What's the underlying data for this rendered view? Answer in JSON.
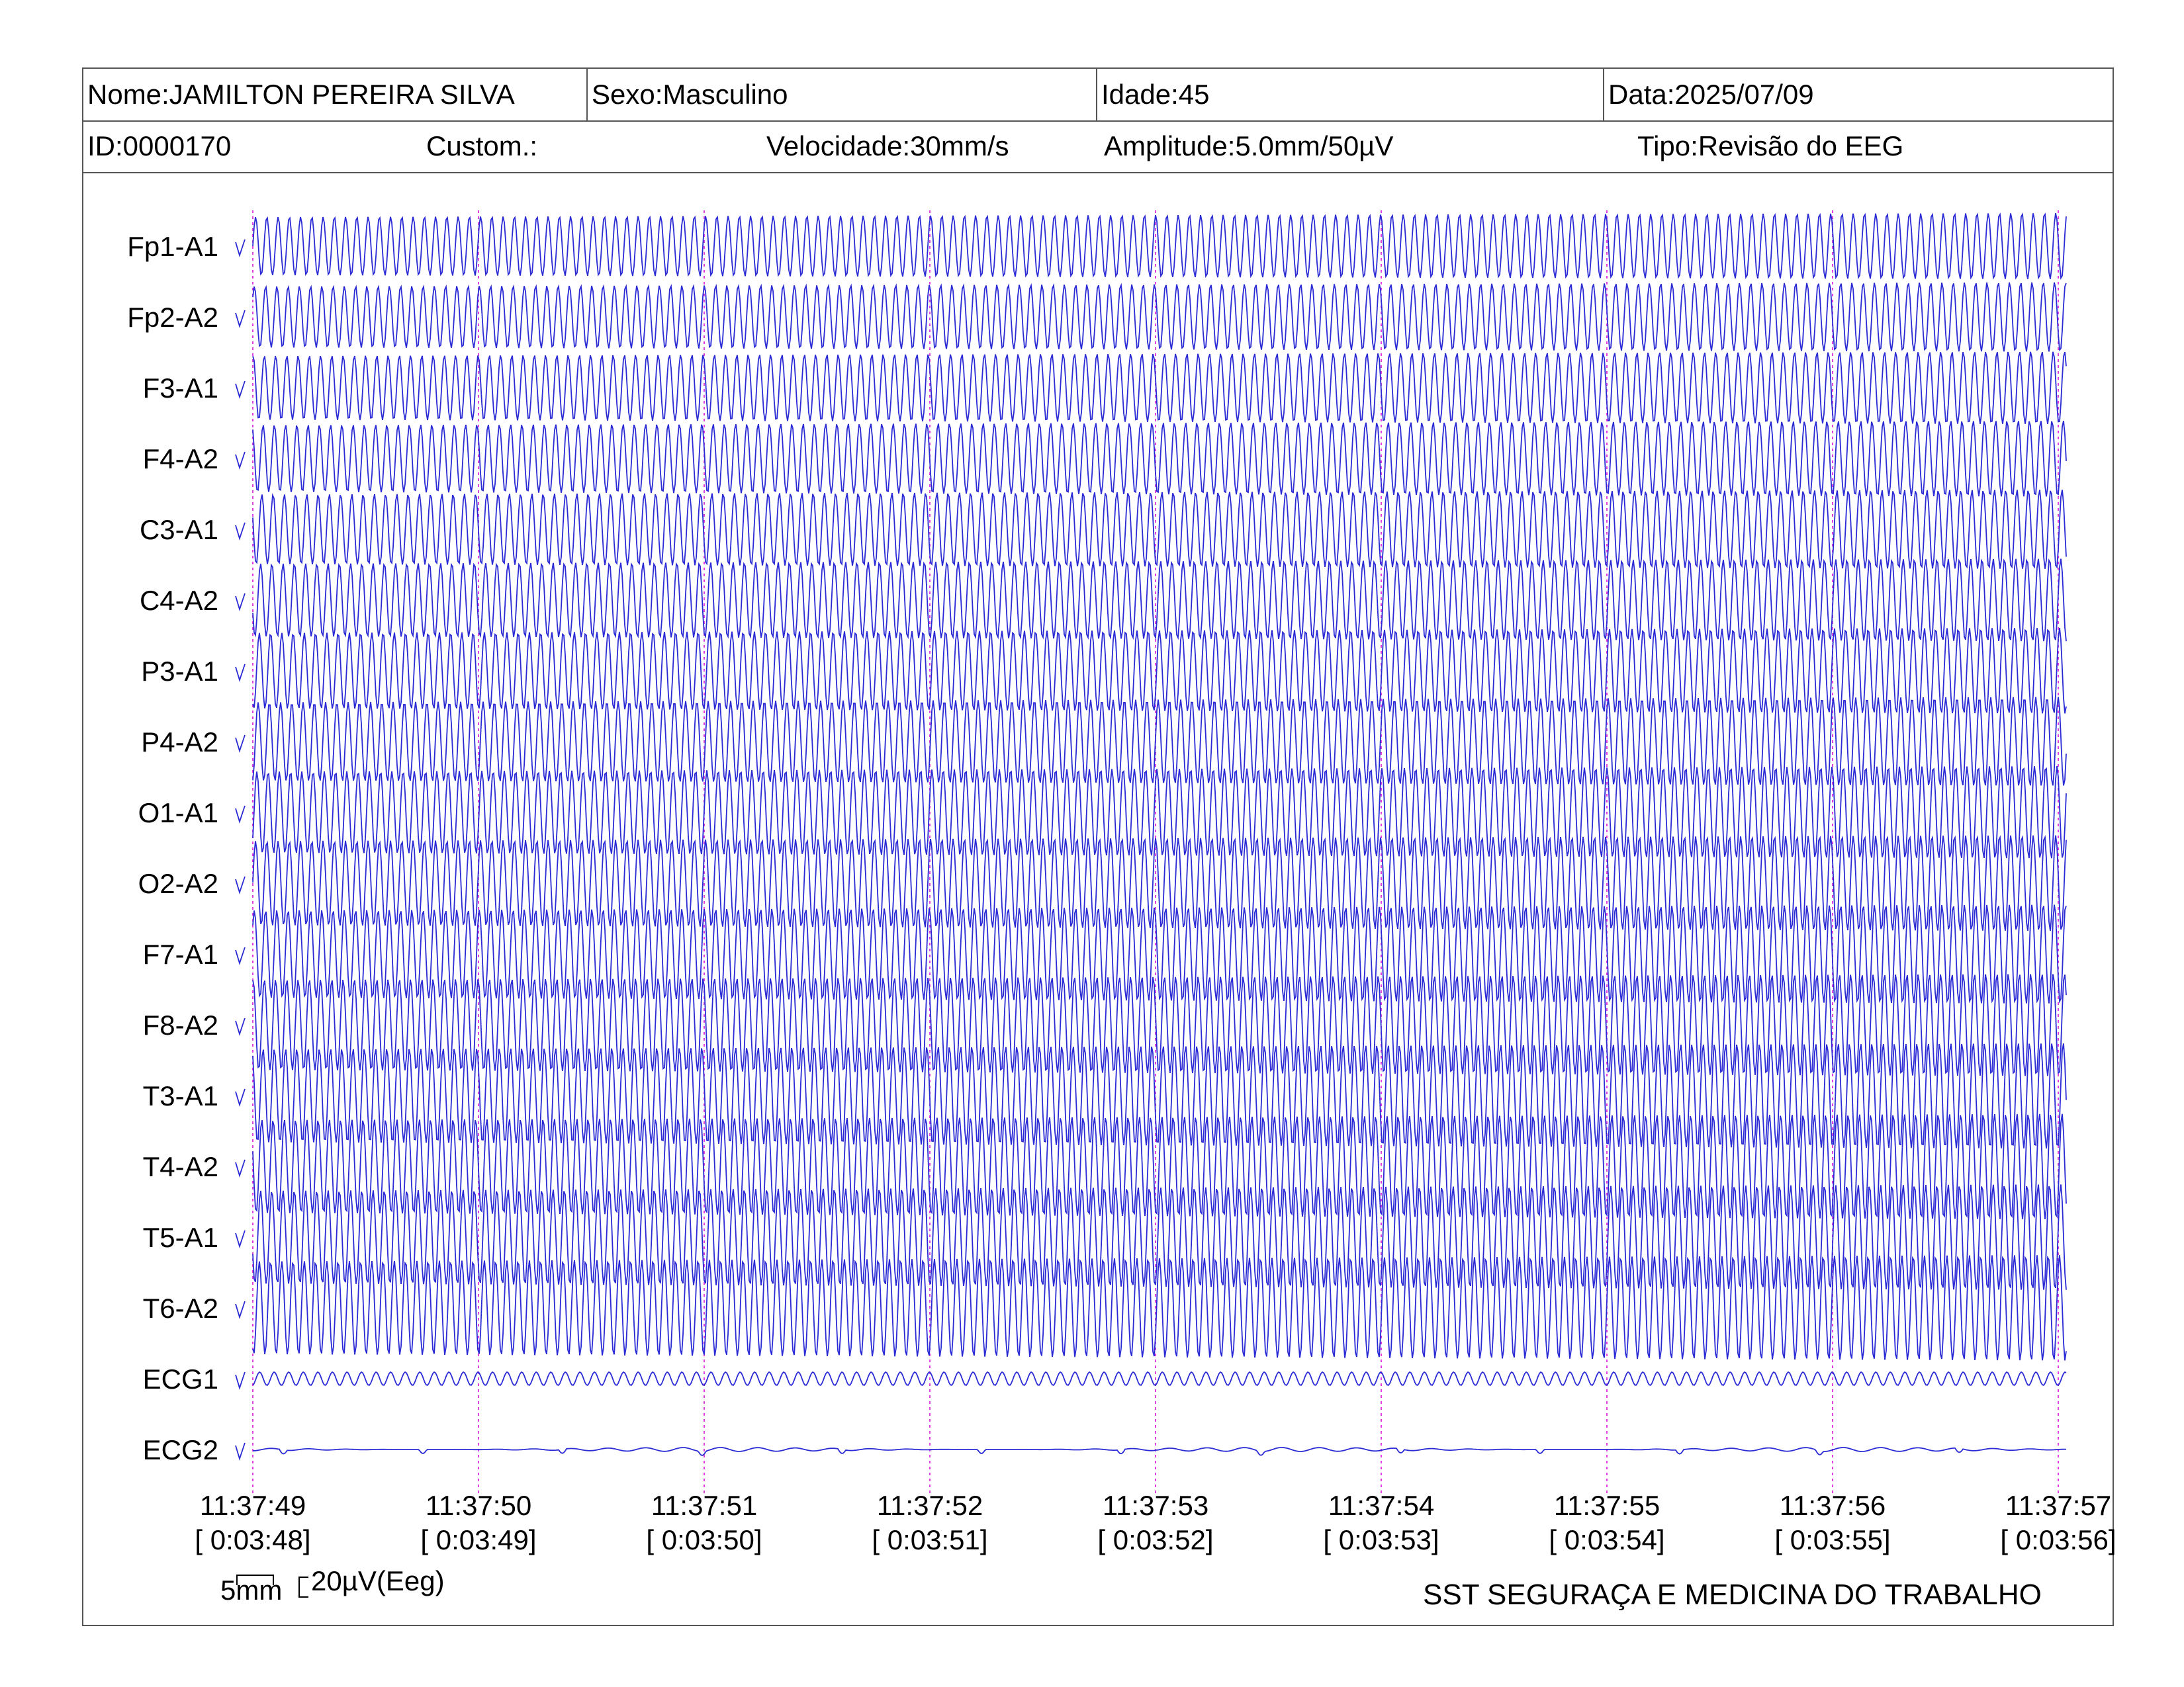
{
  "header": {
    "nome": "Nome:JAMILTON PEREIRA SILVA",
    "sexo": "Sexo:Masculino",
    "idade": "Idade:45",
    "data": "Data:2025/07/09",
    "id": "ID:0000170",
    "custom": "Custom.:",
    "velocidade": "Velocidade:30mm/s",
    "amplitude": "Amplitude:5.0mm/50µV",
    "tipo": "Tipo:Revisão do EEG"
  },
  "scale": {
    "time_bar": "5mm",
    "amp_bar": "20µV(Eeg)"
  },
  "footer": {
    "company": "SST SEGURAÇA E MEDICINA DO TRABALHO"
  },
  "colors": {
    "trace": "#2b2bd6",
    "marker": "#e040e0",
    "border": "#555555"
  },
  "chart_data": {
    "type": "line",
    "channels": [
      "Fp1-A1",
      "Fp2-A2",
      "F3-A1",
      "F4-A2",
      "C3-A1",
      "C4-A2",
      "P3-A1",
      "P4-A2",
      "O1-A1",
      "O2-A2",
      "F7-A1",
      "F8-A2",
      "T3-A1",
      "T4-A2",
      "T5-A1",
      "T6-A2",
      "ECG1",
      "ECG2"
    ],
    "time_ticks": [
      {
        "clock": "11:37:49",
        "elapsed": "[ 0:03:48]"
      },
      {
        "clock": "11:37:50",
        "elapsed": "[ 0:03:49]"
      },
      {
        "clock": "11:37:51",
        "elapsed": "[ 0:03:50]"
      },
      {
        "clock": "11:37:52",
        "elapsed": "[ 0:03:51]"
      },
      {
        "clock": "11:37:53",
        "elapsed": "[ 0:03:52]"
      },
      {
        "clock": "11:37:54",
        "elapsed": "[ 0:03:53]"
      },
      {
        "clock": "11:37:55",
        "elapsed": "[ 0:03:54]"
      },
      {
        "clock": "11:37:56",
        "elapsed": "[ 0:03:55]"
      },
      {
        "clock": "11:37:57",
        "elapsed": "[ 0:03:56]"
      }
    ],
    "speed_mm_per_s": 30,
    "sensitivity": "5.0mm/50µV",
    "eeg_waveform": "continuous high-amplitude sinusoidal oscillation, about 20 cycles per second, present in all EEG channels",
    "ecg1_waveform": "low-amplitude regular oscillation",
    "ecg2_waveform": "near-flat baseline with small deflections",
    "grid": "vertical dotted second markers"
  }
}
